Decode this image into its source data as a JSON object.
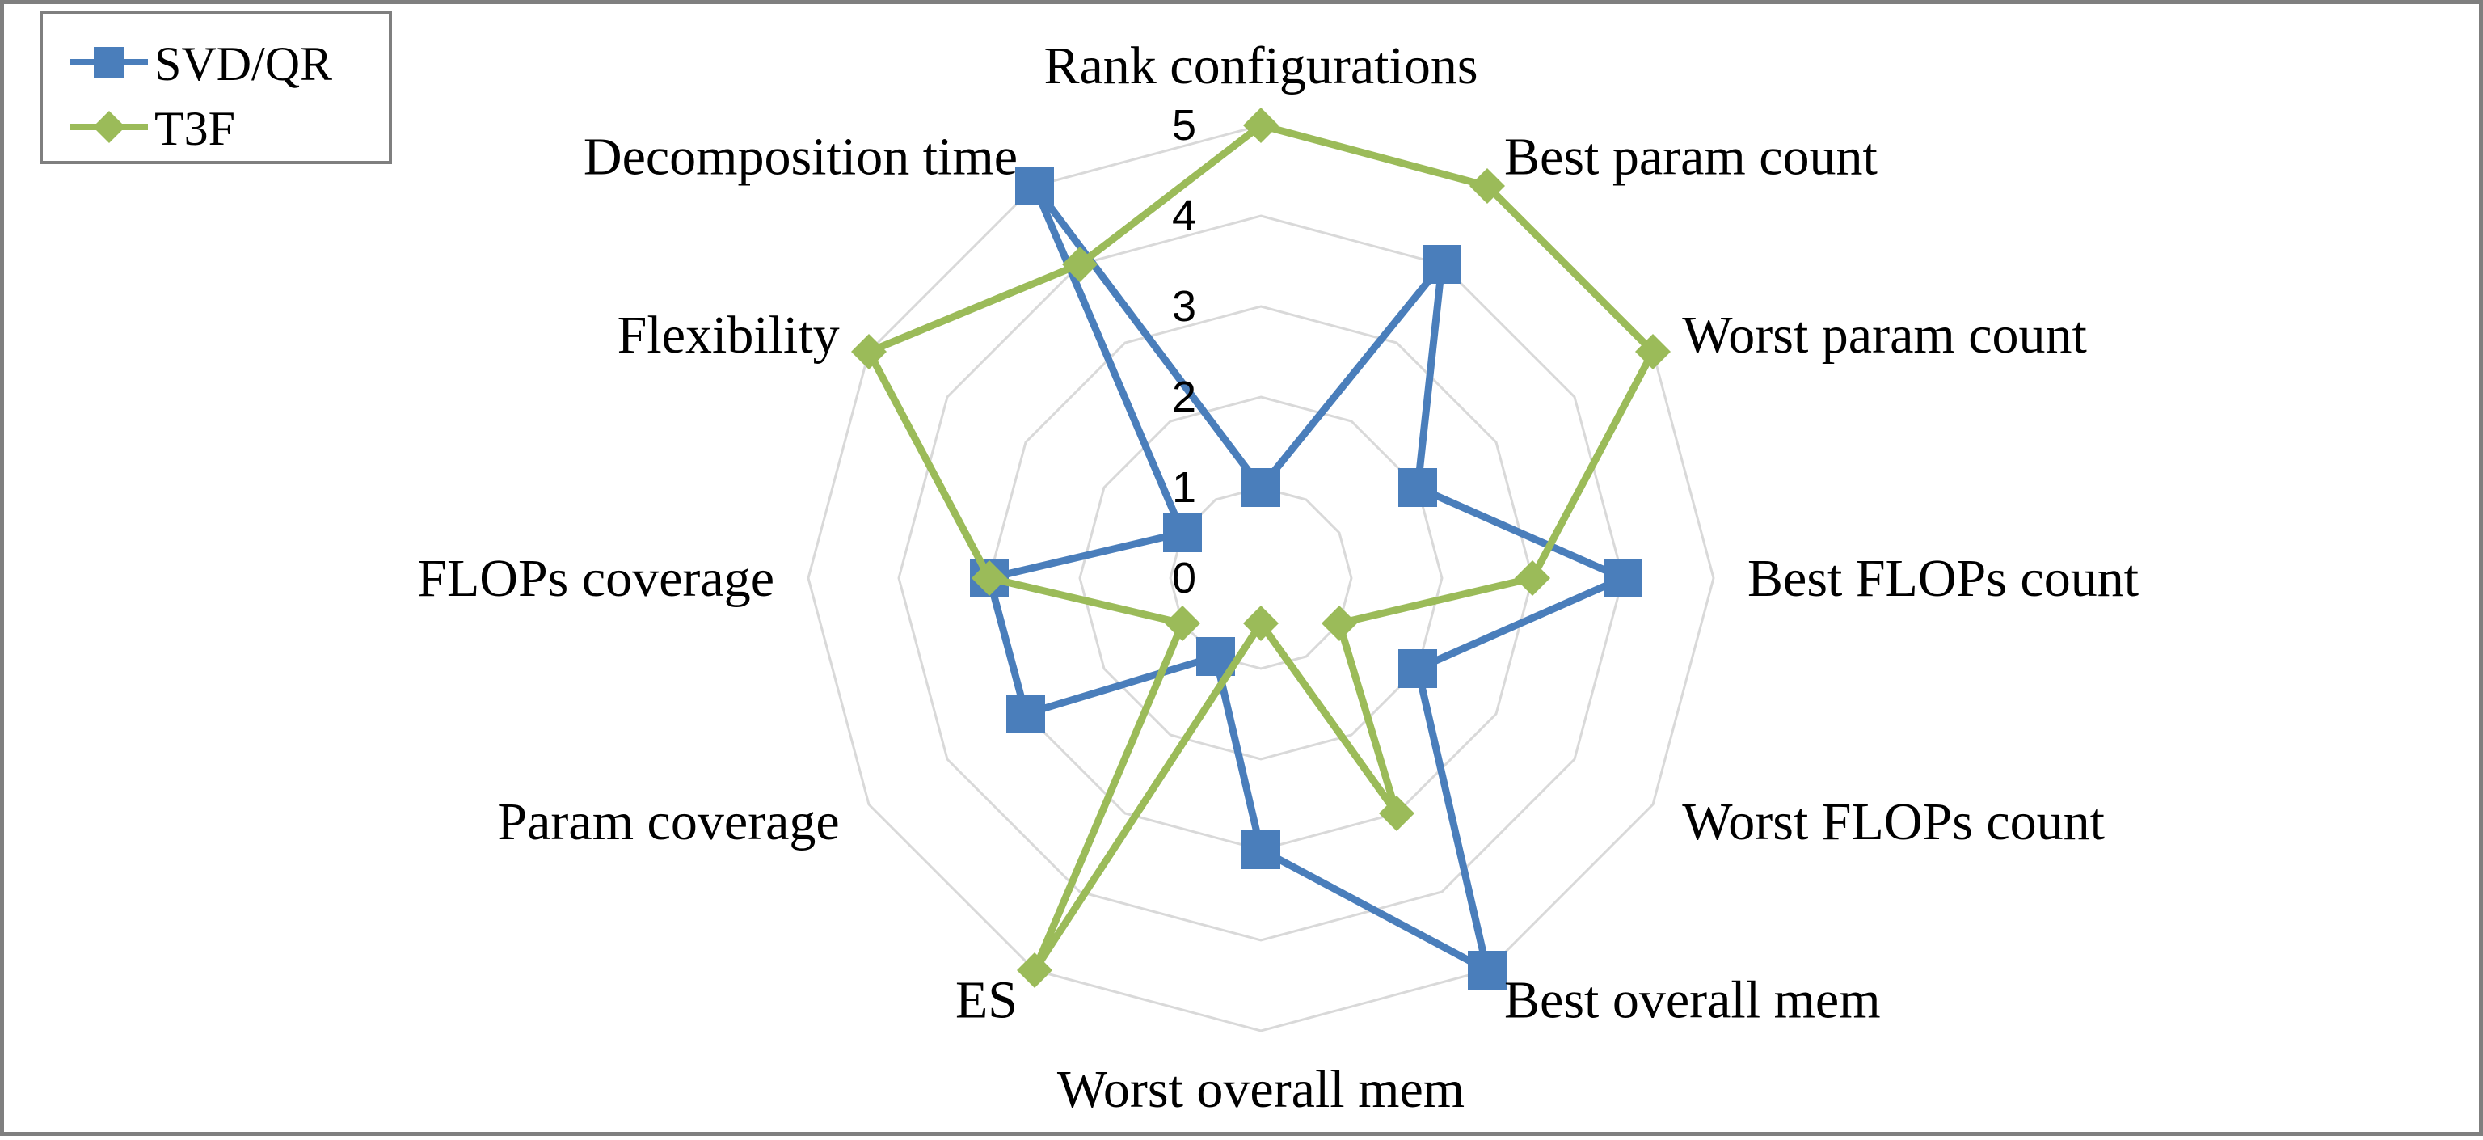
{
  "chart_data": {
    "type": "radar",
    "axes": [
      "Rank configurations",
      "Best param count",
      "Worst param count",
      "Best FLOPs count",
      "Worst FLOPs count",
      "Best overall mem",
      "Worst overall mem",
      "ES",
      "Param coverage",
      "FLOPs coverage",
      "Flexibility",
      "Decomposition time"
    ],
    "ticks": [
      "0",
      "1",
      "2",
      "3",
      "4",
      "5"
    ],
    "rlim": [
      0,
      5
    ],
    "grid": true,
    "legend_position": "top-left",
    "series": [
      {
        "name": "SVD/QR",
        "color": "#4a7ebb",
        "marker": "square",
        "values": [
          1,
          4,
          2,
          4,
          2,
          5,
          3,
          1,
          3,
          3,
          1,
          5
        ]
      },
      {
        "name": "T3F",
        "color": "#9bbb59",
        "marker": "diamond",
        "values": [
          5,
          5,
          5,
          3,
          1,
          3,
          0.5,
          5,
          1,
          3,
          5,
          4
        ]
      }
    ]
  }
}
